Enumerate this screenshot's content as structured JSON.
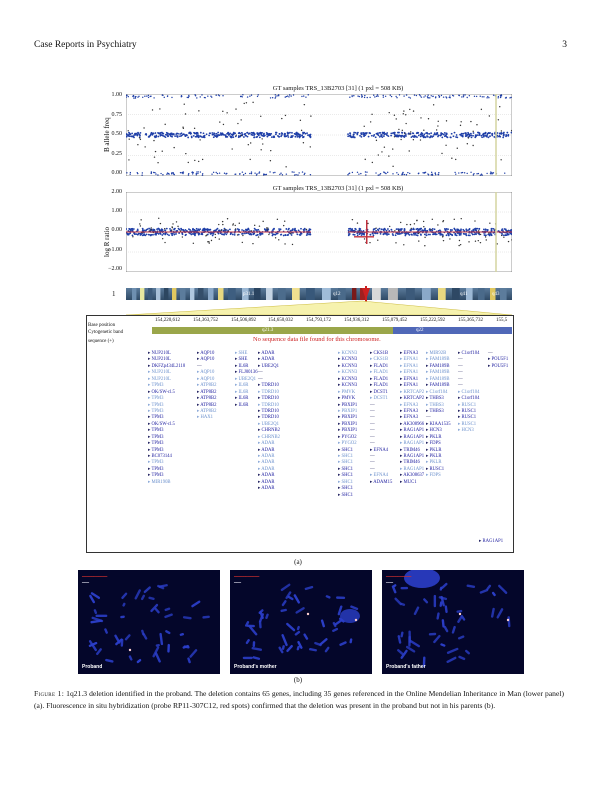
{
  "header": {
    "journal": "Case Reports in Psychiatry",
    "page": "3"
  },
  "baf_plot": {
    "title": "GT samples TRS_13B2703 [31] (1 pxl = 508 KB)",
    "ylabel": "B allele freq",
    "yticks": [
      "1.00",
      "0.75",
      "0.50",
      "0.25",
      "0.00"
    ]
  },
  "logr_plot": {
    "title": "GT samples TRS_13B2703 [31] (1 pxl = 508 KB)",
    "ylabel": "log R ratio",
    "yticks": [
      "2.00",
      "1.00",
      "0.00",
      "−1.00",
      "−2.00"
    ]
  },
  "ideogram": {
    "chrom": "1",
    "bands": [
      "p31.1",
      "q12",
      "q41",
      "q43"
    ]
  },
  "tracks": {
    "labels": [
      "Base position",
      "Cytogenetic band",
      "sequence (+)"
    ],
    "coords": [
      "154,220,612",
      "154,363,752",
      "154,506,892",
      "154,650,032",
      "154,793,172",
      "154,936,312",
      "155,079,452",
      "155,222,592",
      "155,365,732",
      "155,5"
    ],
    "bands": [
      "q21.3",
      "q22"
    ],
    "no_data": "No sequence data file found for this chromosome."
  },
  "gene_columns": [
    {
      "genes": [
        [
          "NUP210L",
          "b"
        ],
        [
          "NUP210L",
          "b"
        ],
        [
          "DKFZp434L2118",
          "b"
        ],
        [
          "NUP210L",
          "l"
        ],
        [
          "NUP210L",
          "l"
        ],
        [
          "TPM3",
          "l"
        ],
        [
          "OK/SW-cl.5",
          "b"
        ],
        [
          "TPM3",
          "l"
        ],
        [
          "TPM3",
          "l"
        ],
        [
          "TPM3",
          "l"
        ],
        [
          "TPM3",
          "b"
        ],
        [
          "OK/SW-cl.5",
          "b"
        ],
        [
          "TPM3",
          "b"
        ],
        [
          "TPM3",
          "b"
        ],
        [
          "TPM3",
          "b"
        ],
        [
          "TPM3",
          "b"
        ],
        [
          "BC073144",
          "b"
        ],
        [
          "TPM3",
          "l"
        ],
        [
          "TPM3",
          "b"
        ],
        [
          "TPM3",
          "b"
        ],
        [
          "MIR190B",
          "l"
        ]
      ]
    },
    {
      "genes": [
        [
          "AQP10",
          "b"
        ],
        [
          "AQP10",
          "b"
        ],
        [
          "",
          "b"
        ],
        [
          "AQP10",
          "l"
        ],
        [
          "AQP10",
          "l"
        ],
        [
          "ATP8B2",
          "l"
        ],
        [
          "ATP8B2",
          "b"
        ],
        [
          "ATP8B2",
          "b"
        ],
        [
          "ATP8B2",
          "b"
        ],
        [
          "ATP8B2",
          "l"
        ],
        [
          "HAX1",
          "l"
        ]
      ]
    },
    {
      "genes": [
        [
          "SHE",
          "l"
        ],
        [
          "SHE",
          "b"
        ],
        [
          "IL6R",
          "b"
        ],
        [
          "FLJ00136",
          "b"
        ],
        [
          "UBE2Q1",
          "l"
        ],
        [
          "IL6R",
          "l"
        ],
        [
          "IL6R",
          "l"
        ],
        [
          "IL6R",
          "b"
        ],
        [
          "IL6R",
          "b"
        ]
      ]
    },
    {
      "genes": [
        [
          "ADAR",
          "b"
        ],
        [
          "ADAR",
          "b"
        ],
        [
          "UBE2Q1",
          "b"
        ],
        [
          "",
          "b"
        ],
        [
          "",
          "b"
        ],
        [
          "TDRD10",
          "b"
        ],
        [
          "TDRD10",
          "l"
        ],
        [
          "TDRD10",
          "b"
        ],
        [
          "TDRD10",
          "l"
        ],
        [
          "TDRD10",
          "b"
        ],
        [
          "TDRD10",
          "b"
        ],
        [
          "UBE2Q1",
          "l"
        ],
        [
          "CHRNB2",
          "b"
        ],
        [
          "CHRNB2",
          "l"
        ],
        [
          "ADAR",
          "l"
        ],
        [
          "ADAR",
          "b"
        ],
        [
          "ADAR",
          "l"
        ],
        [
          "ADAR",
          "l"
        ],
        [
          "ADAR",
          "l"
        ],
        [
          "ADAR",
          "b"
        ],
        [
          "ADAR",
          "b"
        ],
        [
          "ADAR",
          "b"
        ]
      ]
    },
    {
      "genes": [
        [
          "KCNN3",
          "l"
        ],
        [
          "KCNN3",
          "b"
        ],
        [
          "KCNN3",
          "b"
        ],
        [
          "KCNN3",
          "l"
        ],
        [
          "KCNN3",
          "b"
        ],
        [
          "KCNN3",
          "b"
        ],
        [
          "PMVK",
          "l"
        ],
        [
          "PMVK",
          "b"
        ],
        [
          "PBXIP1",
          "b"
        ],
        [
          "PBXIP1",
          "l"
        ],
        [
          "PBXIP1",
          "b"
        ],
        [
          "PBXIP1",
          "b"
        ],
        [
          "PBXIP1",
          "b"
        ],
        [
          "PYGO2",
          "b"
        ],
        [
          "PYGO2",
          "l"
        ],
        [
          "SHC1",
          "b"
        ],
        [
          "SHC1",
          "l"
        ],
        [
          "SHC1",
          "l"
        ],
        [
          "SHC1",
          "b"
        ],
        [
          "SHC1",
          "b"
        ],
        [
          "SHC1",
          "l"
        ],
        [
          "SHC1",
          "b"
        ],
        [
          "SHC1",
          "b"
        ]
      ]
    },
    {
      "genes": [
        [
          "CKS1B",
          "b"
        ],
        [
          "CKS1B",
          "l"
        ],
        [
          "FLAD1",
          "b"
        ],
        [
          "FLAD1",
          "l"
        ],
        [
          "FLAD1",
          "b"
        ],
        [
          "FLAD1",
          "b"
        ],
        [
          "DCST1",
          "b"
        ],
        [
          "DCST1",
          "l"
        ],
        [
          "",
          "b"
        ],
        [
          "",
          "b"
        ],
        [
          "",
          "b"
        ],
        [
          "",
          "b"
        ],
        [
          "",
          "b"
        ],
        [
          "",
          "b"
        ],
        [
          "",
          "b"
        ],
        [
          "EFNA4",
          "b"
        ],
        [
          "",
          "b"
        ],
        [
          "",
          "b"
        ],
        [
          "",
          "b"
        ],
        [
          "EFNA4",
          "l"
        ],
        [
          "ADAM15",
          "b"
        ]
      ]
    },
    {
      "genes": [
        [
          "EFNA3",
          "b"
        ],
        [
          "EFNA1",
          "l"
        ],
        [
          "EFNA1",
          "l"
        ],
        [
          "EFNA1",
          "l"
        ],
        [
          "EFNA1",
          "b"
        ],
        [
          "EFNA1",
          "b"
        ],
        [
          "KRTCAP2",
          "l"
        ],
        [
          "KRTCAP2",
          "b"
        ],
        [
          "EFNA3",
          "l"
        ],
        [
          "EFNA3",
          "b"
        ],
        [
          "EFNA3",
          "b"
        ],
        [
          "AK308966",
          "b"
        ],
        [
          "RAG1AP1",
          "b"
        ],
        [
          "RAG1AP1",
          "b"
        ],
        [
          "RAG1AP1",
          "l"
        ],
        [
          "TRIM46",
          "b"
        ],
        [
          "RAG1AP1",
          "b"
        ],
        [
          "TRIM46",
          "b"
        ],
        [
          "RAG1AP1",
          "l"
        ],
        [
          "AK308637",
          "b"
        ],
        [
          "MUC1",
          "b"
        ]
      ]
    },
    {
      "genes": [
        [
          "MIR92B",
          "l"
        ],
        [
          "FAM189B",
          "l"
        ],
        [
          "FAM189B",
          "b"
        ],
        [
          "FAM189B",
          "l"
        ],
        [
          "FAM189B",
          "l"
        ],
        [
          "FAM189B",
          "b"
        ],
        [
          "C1orf104",
          "l"
        ],
        [
          "THBS3",
          "b"
        ],
        [
          "THBS3",
          "l"
        ],
        [
          "THBS3",
          "b"
        ],
        [
          "",
          "b"
        ],
        [
          "KIAA1535",
          "b"
        ],
        [
          "HCN3",
          "b"
        ],
        [
          "PKLR",
          "b"
        ],
        [
          "FDPS",
          "b"
        ],
        [
          "PKLR",
          "b"
        ],
        [
          "PKLR",
          "b"
        ],
        [
          "PKLR",
          "l"
        ],
        [
          "RUSC1",
          "b"
        ],
        [
          "FDPS",
          "l"
        ]
      ]
    },
    {
      "genes": [
        [
          "C1orf104",
          "b"
        ],
        [
          "",
          "b"
        ],
        [
          "",
          "b"
        ],
        [
          "",
          "b"
        ],
        [
          "",
          "b"
        ],
        [
          "",
          "b"
        ],
        [
          "C1orf104",
          "l"
        ],
        [
          "C1orf104",
          "b"
        ],
        [
          "RUSC1",
          "l"
        ],
        [
          "RUSC1",
          "b"
        ],
        [
          "RUSC1",
          "b"
        ],
        [
          "RUSC1",
          "l"
        ],
        [
          "HCN3",
          "l"
        ]
      ]
    },
    {
      "genes": [
        [
          "",
          "b"
        ],
        [
          "POU5F1",
          "b"
        ],
        [
          "POU5F1",
          "b"
        ]
      ]
    },
    {
      "genes": [
        [
          "RAG1AP1",
          "b"
        ]
      ]
    }
  ],
  "panel_a_caption": "(a)",
  "fish_panels": [
    {
      "label": "Proband"
    },
    {
      "label": "Proband's mother"
    },
    {
      "label": "Proband's father"
    }
  ],
  "panel_b_caption": "(b)",
  "figure_caption": {
    "label": "Figure 1:",
    "text": " 1q21.3 deletion identified in the proband. The deletion contains 65 genes, including 35 genes referenced in the Online Mendelian Inheritance in Man (lower panel) (a). Fluorescence in situ hybridization (probe RP11-307C12, red spots) confirmed that the deletion was present in the proband but not in his parents (b)."
  }
}
